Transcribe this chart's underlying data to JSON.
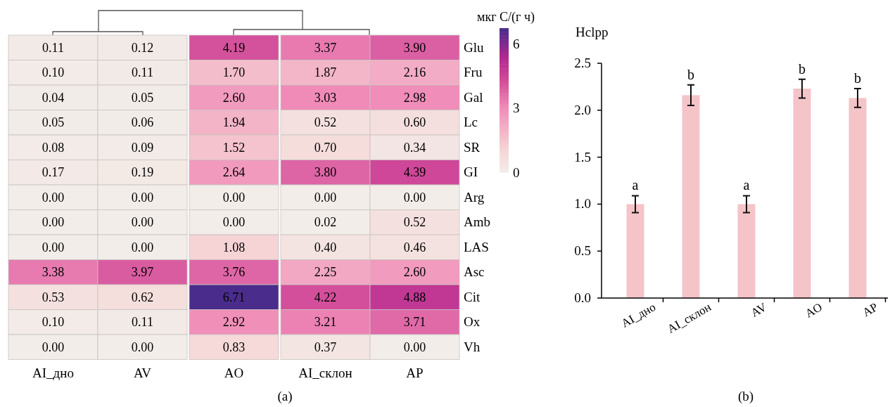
{
  "chart_data": [
    {
      "type": "heatmap",
      "categories": [
        "AI_дно",
        "AV",
        "AO",
        "AI_склон",
        "AP"
      ],
      "y_categories": [
        "Glu",
        "Fru",
        "Gal",
        "Lc",
        "SR",
        "GI",
        "Arg",
        "Amb",
        "LAS",
        "Asc",
        "Cit",
        "Ox",
        "Vh"
      ],
      "cells": [
        [
          0.11,
          0.12,
          4.19,
          3.37,
          3.9
        ],
        [
          0.1,
          0.11,
          1.7,
          1.87,
          2.16
        ],
        [
          0.04,
          0.05,
          2.6,
          3.03,
          2.98
        ],
        [
          0.05,
          0.06,
          1.94,
          0.52,
          0.6
        ],
        [
          0.08,
          0.09,
          1.52,
          0.7,
          0.34
        ],
        [
          0.17,
          0.19,
          2.64,
          3.8,
          4.39
        ],
        [
          0.0,
          0.0,
          0.0,
          0.0,
          0.0
        ],
        [
          0.0,
          0.0,
          0.0,
          0.02,
          0.52
        ],
        [
          0.0,
          0.0,
          1.08,
          0.4,
          0.46
        ],
        [
          3.38,
          3.97,
          3.76,
          2.25,
          2.6
        ],
        [
          0.53,
          0.62,
          6.71,
          4.22,
          4.88
        ],
        [
          0.1,
          0.11,
          2.92,
          3.21,
          3.71
        ],
        [
          0.0,
          0.0,
          0.83,
          0.37,
          0.0
        ]
      ],
      "cell_labels": [
        [
          "0.11",
          "0.12",
          "4.19",
          "3.37",
          "3.90"
        ],
        [
          "0.10",
          "0.11",
          "1.70",
          "1.87",
          "2.16"
        ],
        [
          "0.04",
          "0.05",
          "2.60",
          "3.03",
          "2.98"
        ],
        [
          "0.05",
          "0.06",
          "1.94",
          "0.52",
          "0.60"
        ],
        [
          "0.08",
          "0.09",
          "1.52",
          "0.70",
          "0.34"
        ],
        [
          "0.17",
          "0.19",
          "2.64",
          "3.80",
          "4.39"
        ],
        [
          "0.00",
          "0.00",
          "0.00",
          "0.00",
          "0.00"
        ],
        [
          "0.00",
          "0.00",
          "0.00",
          "0.02",
          "0.52"
        ],
        [
          "0.00",
          "0.00",
          "1.08",
          "0.40",
          "0.46"
        ],
        [
          "3.38",
          "3.97",
          "3.76",
          "2.25",
          "2.60"
        ],
        [
          "0.53",
          "0.62",
          "6.71",
          "4.22",
          "4.88"
        ],
        [
          "0.10",
          "0.11",
          "2.92",
          "3.21",
          "3.71"
        ],
        [
          "0.00",
          "0.00",
          "0.83",
          "0.37",
          "0.00"
        ]
      ],
      "clabel": "мкг C/(г ч)",
      "clim": [
        0,
        6.71
      ],
      "cticks": [
        0,
        3,
        6
      ],
      "annotations": [
        "(a)"
      ]
    },
    {
      "type": "bar",
      "categories": [
        "AI_дно",
        "AI_склон",
        "AV",
        "AO",
        "AP"
      ],
      "values": [
        1.0,
        2.16,
        1.0,
        2.23,
        2.13
      ],
      "errors": [
        0.09,
        0.11,
        0.09,
        0.1,
        0.1
      ],
      "color": "#f4c4c8",
      "ylabel": "Hclpp",
      "ylim": [
        0,
        2.5
      ],
      "yticks": [
        {
          "value": 0,
          "label": "0.0"
        },
        {
          "value": 0.5,
          "label": "0.5"
        },
        {
          "value": 1,
          "label": "1.0"
        },
        {
          "value": 1.5,
          "label": "1.5"
        },
        {
          "value": 2,
          "label": "2.0"
        },
        {
          "value": 2.5,
          "label": "2.5"
        }
      ],
      "annotations": [
        "a",
        "b",
        "a",
        "b",
        "b",
        "(b)"
      ]
    }
  ]
}
